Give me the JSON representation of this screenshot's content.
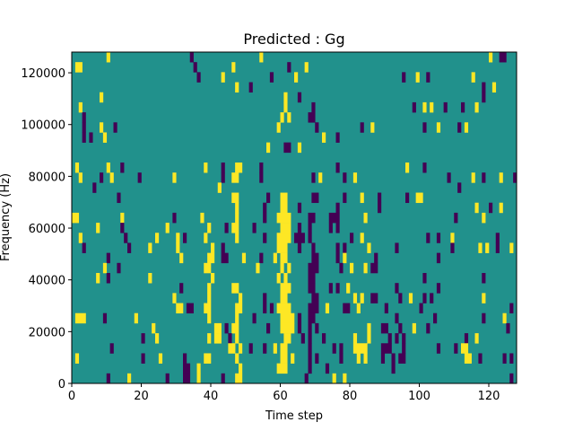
{
  "chart_data": {
    "type": "heatmap",
    "title": "Predicted : Gg",
    "xlabel": "Time step",
    "ylabel": "Frequency (Hz)",
    "xlim": [
      0,
      128
    ],
    "ylim": [
      0,
      128000
    ],
    "x_ticks": [
      0,
      20,
      40,
      60,
      80,
      100,
      120
    ],
    "y_ticks": [
      0,
      20000,
      40000,
      60000,
      80000,
      100000,
      120000
    ],
    "x_tick_labels": [
      "0",
      "20",
      "40",
      "60",
      "80",
      "100",
      "120"
    ],
    "y_tick_labels": [
      "0",
      "20000",
      "40000",
      "60000",
      "80000",
      "100000",
      "120000"
    ],
    "n_time_steps": 128,
    "n_freq_bins": 33,
    "default_value": 1,
    "colors": {
      "0": "#440154",
      "1": "#21918c",
      "2": "#fde725"
    },
    "grid": false,
    "rows_top_to_bottom": [
      {
        "v2": "10,54,120",
        "v0": "34,123-124"
      },
      {
        "v2": "1-2,46,67",
        "v0": "35,62"
      },
      {
        "v2": "43,64,99,115",
        "v0": "36,57,95,102"
      },
      {
        "v2": "47,121",
        "v0": "51,118"
      },
      {
        "v2": "8,61",
        "v0": "65,118"
      },
      {
        "v2": "2,61,101,103,116",
        "v0": "69,98,107,112"
      },
      {
        "v2": "60,62",
        "v0": "3,68-69"
      },
      {
        "v2": "8,59,86,105,113",
        "v0": "3,12,70,83,101,111"
      },
      {
        "v2": "9,72",
        "v0": "3,5,76"
      },
      {
        "v2": "56,65",
        "v0": "61-62"
      },
      {
        "v2": "",
        "v0": ""
      },
      {
        "v2": "1,10,38,47-48,96",
        "v0": "14,43,54,76,101"
      },
      {
        "v2": "2,11,29,46-47,71,81,115,123",
        "v0": "8,19,43,54,69,78,108,118,127"
      },
      {
        "v2": "42",
        "v0": "6,111"
      },
      {
        "v2": "46-47,60-61,83,99-100",
        "v0": "13,56,69-70,78,88,96"
      },
      {
        "v2": "47,60-61,116,123",
        "v0": "55,65,76,88,120"
      },
      {
        "v2": "0-1,14,37,47,59-62,84,118",
        "v0": "29,55,68-69,74-76,110"
      },
      {
        "v2": "7,27,39,46-47,60-62",
        "v0": "14,44,52,65,68,74,76"
      },
      {
        "v2": "2,24,30,38,47,59-62,83,109",
        "v0": "15,32,55,64-66,68,80,102,105,122"
      },
      {
        "v2": "22,30,40,59-61,85,117,119,126",
        "v0": "3,16,43,65,69,76,78,93,109,122"
      },
      {
        "v2": "31,39-40,49,58,60-61,78",
        "v0": "10,43-44,54,69-70,76,87,105"
      },
      {
        "v2": "9,38-39,53,60,62,80,84",
        "v0": "13,68-70,77,86-87"
      },
      {
        "v2": "7,22,40,59,61",
        "v0": "10,68-69,101,118"
      },
      {
        "v2": "39,46-47,60-62,79",
        "v0": "31,68-69,74,76,93,105"
      },
      {
        "v2": "29,39,48,60-61,81,83,97,118",
        "v0": "55,69-70,86-87,94,101,103"
      },
      {
        "v2": "30-31,38-39,47-48,59-62,73,82",
        "v0": "33-34,55,57,68-70,78-79,90,100,126"
      },
      {
        "v2": "1-3,18,39,47,60-63,124",
        "v0": "9,52,65,68-69,93,104,118"
      },
      {
        "v2": "23,41-42,46-47,60-63,85,98",
        "v0": "44,56,65,68,70,89-90,94,102,125"
      },
      {
        "v2": "24,39,41-42,47,61-62,81,85,116",
        "v0": "20,45,66,68,72,91,93,95,113"
      },
      {
        "v2": "45-46,48,58,60-61,81-84,112-113",
        "v0": "11,51,55,68,75,77,89-91,95,105,110"
      },
      {
        "v2": "1,25,38-39,47,60-61,63,82,84,113-114",
        "v0": "20,32,68,70,77,89,92,94-95,117,124,126"
      },
      {
        "v2": "36,48,59-61",
        "v0": "32-33,68,73,92"
      },
      {
        "v2": "16,36,47-48,75,78",
        "v0": "10,27,32-33,43,67,126"
      }
    ]
  }
}
